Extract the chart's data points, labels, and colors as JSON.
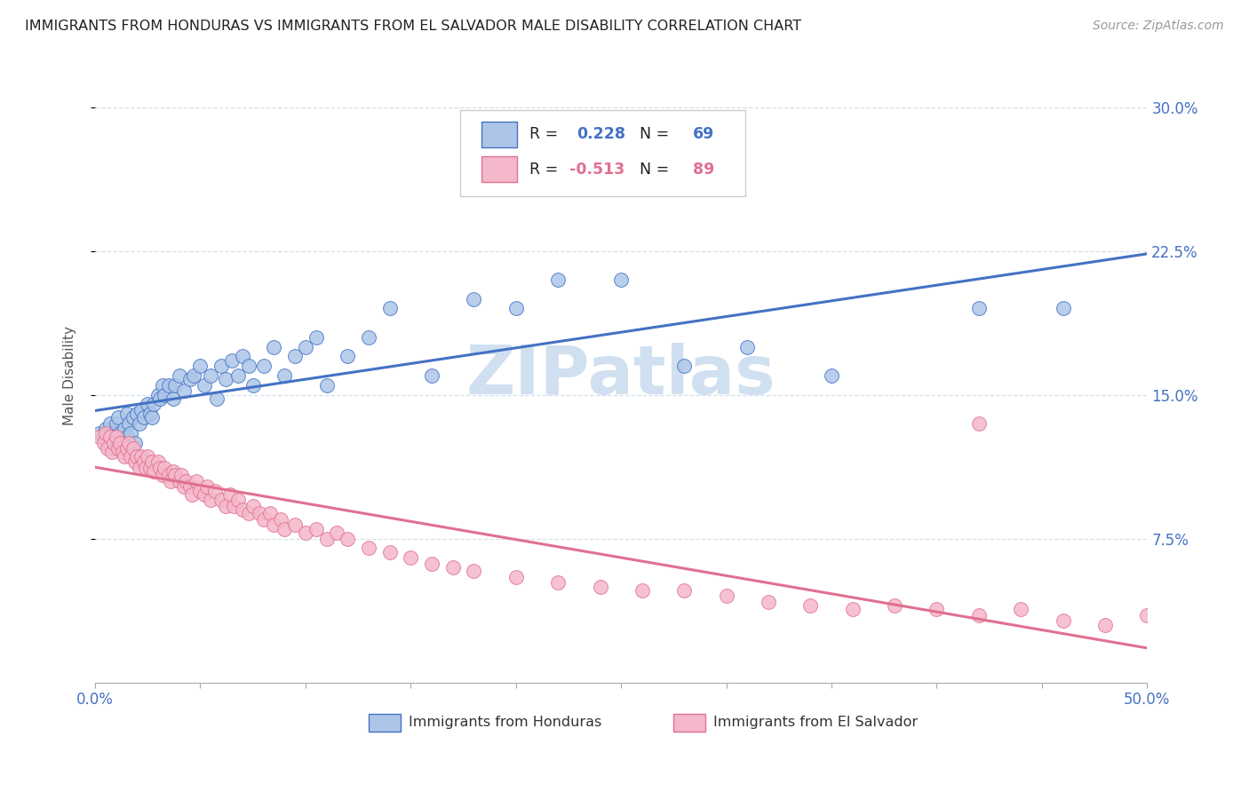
{
  "title": "IMMIGRANTS FROM HONDURAS VS IMMIGRANTS FROM EL SALVADOR MALE DISABILITY CORRELATION CHART",
  "source": "Source: ZipAtlas.com",
  "ylabel": "Male Disability",
  "y_ticks": [
    0.075,
    0.15,
    0.225,
    0.3
  ],
  "y_tick_labels": [
    "7.5%",
    "15.0%",
    "22.5%",
    "30.0%"
  ],
  "xlim": [
    0.0,
    0.5
  ],
  "ylim": [
    0.0,
    0.32
  ],
  "R_honduras": 0.228,
  "N_honduras": 69,
  "R_salvador": -0.513,
  "N_salvador": 89,
  "color_honduras": "#adc6e8",
  "color_salvador": "#f5b8cb",
  "line_color_honduras": "#4472c4",
  "line_color_salvador": "#e07090",
  "watermark": "ZIPatlas",
  "watermark_color": "#d0e0f0",
  "honduras_x": [
    0.002,
    0.004,
    0.005,
    0.006,
    0.007,
    0.008,
    0.009,
    0.009,
    0.01,
    0.011,
    0.012,
    0.013,
    0.014,
    0.015,
    0.015,
    0.016,
    0.017,
    0.018,
    0.019,
    0.02,
    0.021,
    0.022,
    0.023,
    0.025,
    0.026,
    0.027,
    0.028,
    0.03,
    0.031,
    0.032,
    0.033,
    0.035,
    0.037,
    0.038,
    0.04,
    0.042,
    0.045,
    0.047,
    0.05,
    0.052,
    0.055,
    0.058,
    0.06,
    0.062,
    0.065,
    0.068,
    0.07,
    0.073,
    0.075,
    0.08,
    0.085,
    0.09,
    0.095,
    0.1,
    0.105,
    0.11,
    0.12,
    0.13,
    0.14,
    0.16,
    0.18,
    0.2,
    0.22,
    0.25,
    0.28,
    0.31,
    0.35,
    0.42,
    0.46
  ],
  "honduras_y": [
    0.13,
    0.128,
    0.132,
    0.125,
    0.135,
    0.128,
    0.13,
    0.122,
    0.135,
    0.138,
    0.13,
    0.125,
    0.132,
    0.14,
    0.128,
    0.135,
    0.13,
    0.138,
    0.125,
    0.14,
    0.135,
    0.142,
    0.138,
    0.145,
    0.14,
    0.138,
    0.145,
    0.15,
    0.148,
    0.155,
    0.15,
    0.155,
    0.148,
    0.155,
    0.16,
    0.152,
    0.158,
    0.16,
    0.165,
    0.155,
    0.16,
    0.148,
    0.165,
    0.158,
    0.168,
    0.16,
    0.17,
    0.165,
    0.155,
    0.165,
    0.175,
    0.16,
    0.17,
    0.175,
    0.18,
    0.155,
    0.17,
    0.18,
    0.195,
    0.16,
    0.2,
    0.195,
    0.21,
    0.21,
    0.165,
    0.175,
    0.16,
    0.195,
    0.195
  ],
  "salvador_x": [
    0.002,
    0.004,
    0.005,
    0.006,
    0.007,
    0.008,
    0.009,
    0.01,
    0.011,
    0.012,
    0.013,
    0.014,
    0.015,
    0.016,
    0.017,
    0.018,
    0.019,
    0.02,
    0.021,
    0.022,
    0.023,
    0.024,
    0.025,
    0.026,
    0.027,
    0.028,
    0.03,
    0.031,
    0.032,
    0.033,
    0.035,
    0.036,
    0.037,
    0.038,
    0.04,
    0.041,
    0.042,
    0.043,
    0.045,
    0.046,
    0.048,
    0.05,
    0.052,
    0.053,
    0.055,
    0.057,
    0.06,
    0.062,
    0.064,
    0.066,
    0.068,
    0.07,
    0.073,
    0.075,
    0.078,
    0.08,
    0.083,
    0.085,
    0.088,
    0.09,
    0.095,
    0.1,
    0.105,
    0.11,
    0.115,
    0.12,
    0.13,
    0.14,
    0.15,
    0.16,
    0.17,
    0.18,
    0.2,
    0.22,
    0.24,
    0.26,
    0.28,
    0.3,
    0.32,
    0.34,
    0.36,
    0.38,
    0.4,
    0.42,
    0.44,
    0.46,
    0.48,
    0.5,
    0.42
  ],
  "salvador_y": [
    0.128,
    0.125,
    0.13,
    0.122,
    0.128,
    0.12,
    0.125,
    0.128,
    0.122,
    0.125,
    0.12,
    0.118,
    0.122,
    0.125,
    0.118,
    0.122,
    0.115,
    0.118,
    0.112,
    0.118,
    0.115,
    0.112,
    0.118,
    0.112,
    0.115,
    0.11,
    0.115,
    0.112,
    0.108,
    0.112,
    0.108,
    0.105,
    0.11,
    0.108,
    0.105,
    0.108,
    0.102,
    0.105,
    0.102,
    0.098,
    0.105,
    0.1,
    0.098,
    0.102,
    0.095,
    0.1,
    0.095,
    0.092,
    0.098,
    0.092,
    0.095,
    0.09,
    0.088,
    0.092,
    0.088,
    0.085,
    0.088,
    0.082,
    0.085,
    0.08,
    0.082,
    0.078,
    0.08,
    0.075,
    0.078,
    0.075,
    0.07,
    0.068,
    0.065,
    0.062,
    0.06,
    0.058,
    0.055,
    0.052,
    0.05,
    0.048,
    0.048,
    0.045,
    0.042,
    0.04,
    0.038,
    0.04,
    0.038,
    0.035,
    0.038,
    0.032,
    0.03,
    0.035,
    0.135
  ]
}
